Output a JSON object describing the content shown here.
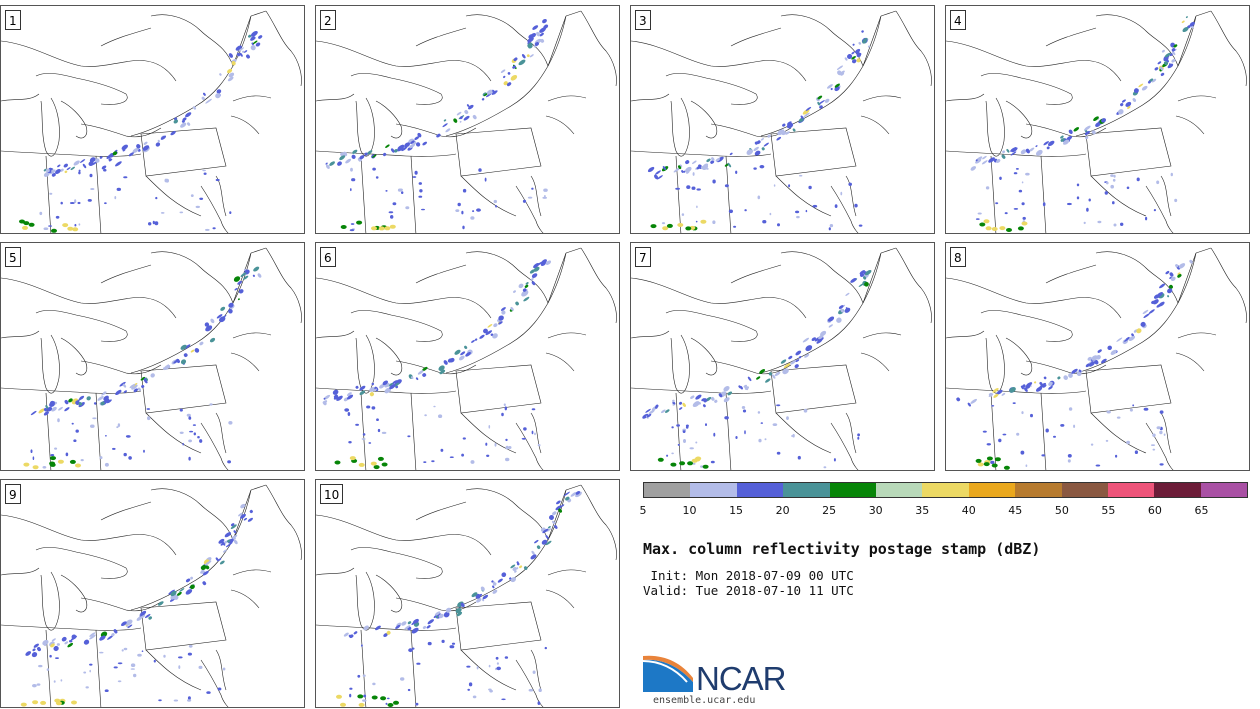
{
  "panels": [
    {
      "label": "1"
    },
    {
      "label": "2"
    },
    {
      "label": "3"
    },
    {
      "label": "4"
    },
    {
      "label": "5"
    },
    {
      "label": "6"
    },
    {
      "label": "7"
    },
    {
      "label": "8"
    },
    {
      "label": "9"
    },
    {
      "label": "10"
    }
  ],
  "colorbar": {
    "ticks": [
      "5",
      "10",
      "15",
      "20",
      "25",
      "30",
      "35",
      "40",
      "45",
      "50",
      "55",
      "60",
      "65"
    ],
    "colors": [
      "#a0a0a0",
      "#b3bce8",
      "#5560d8",
      "#4a9398",
      "#078508",
      "#b8d9b9",
      "#ecd964",
      "#eaa81e",
      "#b77b2f",
      "#8a5841",
      "#ee547a",
      "#6c1c38",
      "#a950a4"
    ]
  },
  "title": "Max. column reflectivity postage stamp (dBZ)",
  "init": " Init: Mon 2018-07-09 00 UTC",
  "valid": "Valid: Tue 2018-07-10 11 UTC",
  "logo_text": "NCAR",
  "site": "ensemble.ucar.edu"
}
